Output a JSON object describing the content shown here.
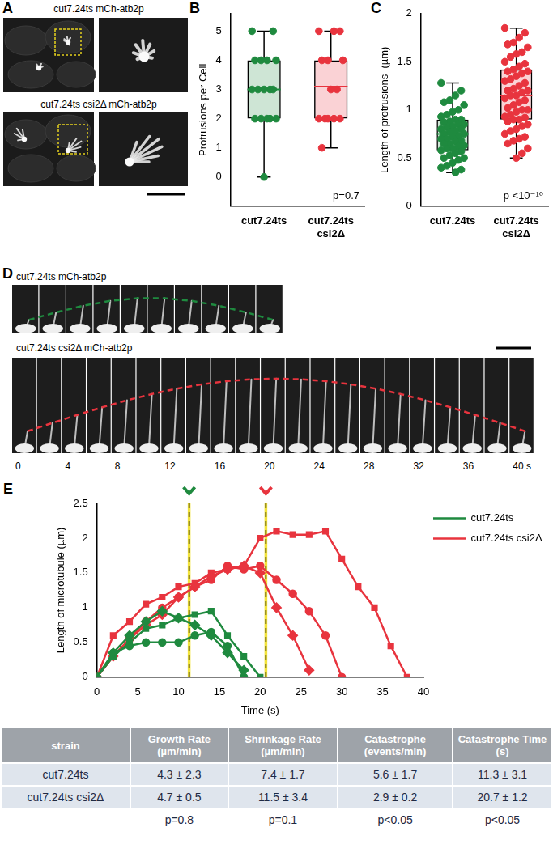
{
  "panel_letters": [
    "A",
    "B",
    "C",
    "D",
    "E"
  ],
  "panel_A": {
    "labels": [
      "cut7.24ts mCh-atb2p",
      "cut7.24ts csi2Δ mCh-atb2p"
    ]
  },
  "panel_D": {
    "labels": [
      "cut7.24ts mCh-atb2p",
      "cut7.24ts csi2Δ mCh-atb2p"
    ],
    "time_labels": [
      "0",
      "4",
      "8",
      "12",
      "16",
      "20",
      "24",
      "28",
      "32",
      "36",
      "40 s"
    ]
  },
  "chart_data": [
    {
      "type": "box",
      "y_label": "Protrusions per Cell",
      "categories": [
        "cut7.24ts",
        "cut7.24ts csi2Δ"
      ],
      "ylim": [
        -1,
        5.6
      ],
      "yticks": [
        0,
        1,
        2,
        3,
        4,
        5
      ],
      "grid": false,
      "annotation": "p=0.7",
      "boxes": [
        {
          "color": "#1f8a3f",
          "min": 0,
          "q1": 2,
          "median": 3,
          "q3": 4,
          "max": 5,
          "points": [
            5,
            5,
            4,
            4,
            4,
            4,
            3,
            3,
            3,
            3,
            3,
            2,
            2,
            2,
            2,
            2,
            0
          ]
        },
        {
          "color": "#e8343e",
          "min": 1,
          "q1": 2,
          "median": 3.1,
          "q3": 4,
          "max": 5,
          "points": [
            5,
            5,
            5,
            4,
            4,
            4,
            3,
            3,
            2,
            2,
            2,
            2,
            2,
            1
          ]
        }
      ]
    },
    {
      "type": "box",
      "y_label": "Length of protrusions  (µm)",
      "categories": [
        "cut7.24ts",
        "cut7.24ts csi2Δ"
      ],
      "ylim": [
        0,
        2
      ],
      "yticks": [
        0,
        0.5,
        1,
        1.5,
        2
      ],
      "grid": false,
      "annotation": "p <10⁻¹⁰",
      "boxes": [
        {
          "color": "#1f8a3f",
          "min": 0.35,
          "q1": 0.58,
          "median": 0.75,
          "q3": 0.9,
          "max": 1.28,
          "points": [
            1.28,
            1.2,
            1.15,
            1.1,
            1.08,
            1.05,
            1.0,
            0.98,
            0.95,
            0.93,
            0.9,
            0.9,
            0.88,
            0.87,
            0.85,
            0.85,
            0.83,
            0.82,
            0.8,
            0.8,
            0.78,
            0.77,
            0.75,
            0.75,
            0.73,
            0.72,
            0.7,
            0.7,
            0.68,
            0.67,
            0.65,
            0.65,
            0.63,
            0.62,
            0.6,
            0.6,
            0.58,
            0.57,
            0.55,
            0.53,
            0.5,
            0.5,
            0.48,
            0.45,
            0.42,
            0.4,
            0.38,
            0.35
          ]
        },
        {
          "color": "#e8343e",
          "min": 0.5,
          "q1": 0.9,
          "median": 1.15,
          "q3": 1.42,
          "max": 1.85,
          "points": [
            1.85,
            1.8,
            1.75,
            1.7,
            1.68,
            1.65,
            1.6,
            1.58,
            1.55,
            1.5,
            1.48,
            1.45,
            1.42,
            1.4,
            1.4,
            1.38,
            1.35,
            1.32,
            1.3,
            1.28,
            1.25,
            1.22,
            1.2,
            1.2,
            1.18,
            1.15,
            1.15,
            1.12,
            1.1,
            1.08,
            1.05,
            1.02,
            1.0,
            1.0,
            0.98,
            0.95,
            0.93,
            0.92,
            0.9,
            0.9,
            0.88,
            0.85,
            0.83,
            0.8,
            0.78,
            0.75,
            0.72,
            0.7,
            0.68,
            0.65,
            0.6,
            0.55,
            0.5
          ]
        }
      ]
    },
    {
      "type": "line",
      "x_label": "Time (s)",
      "y_label": "Length of microtubule (µm)",
      "xlim": [
        0,
        40
      ],
      "xticks": [
        0,
        5,
        10,
        15,
        20,
        25,
        30,
        35,
        40
      ],
      "ylim": [
        0,
        2.5
      ],
      "yticks": [
        0,
        0.5,
        1,
        1.5,
        2,
        2.5
      ],
      "grid": false,
      "legend": "right",
      "vlines": [
        {
          "x": 11.3,
          "color": "#1f8a3f"
        },
        {
          "x": 20.7,
          "color": "#e8343e"
        }
      ],
      "series": [
        {
          "name": "cut7.24ts",
          "color": "#1f8a3f",
          "marker": "square",
          "x": [
            0,
            2,
            4,
            6,
            8,
            10,
            12,
            14,
            16,
            18,
            20
          ],
          "values": [
            0,
            0.3,
            0.5,
            0.7,
            0.75,
            0.85,
            0.9,
            0.95,
            0.6,
            0.3,
            0
          ]
        },
        {
          "name": "cut7.24ts",
          "color": "#1f8a3f",
          "marker": "diamond",
          "x": [
            0,
            2,
            4,
            6,
            8,
            10,
            12,
            14,
            16,
            18
          ],
          "values": [
            0,
            0.35,
            0.6,
            0.8,
            0.95,
            0.85,
            0.75,
            0.6,
            0.35,
            0.1
          ]
        },
        {
          "name": "cut7.24ts",
          "color": "#1f8a3f",
          "marker": "circle",
          "x": [
            0,
            2,
            4,
            6,
            8,
            10,
            12,
            14,
            16,
            18
          ],
          "values": [
            0,
            0.35,
            0.45,
            0.5,
            0.5,
            0.5,
            0.6,
            0.65,
            0.45,
            0
          ]
        },
        {
          "name": "cut7.24ts csi2Δ",
          "color": "#e8343e",
          "marker": "square",
          "x": [
            0,
            2,
            4,
            6,
            8,
            10,
            12,
            14,
            16,
            18,
            20,
            22,
            24,
            26,
            28,
            30,
            32,
            34,
            36,
            38
          ],
          "values": [
            0,
            0.6,
            0.8,
            1.05,
            1.15,
            1.3,
            1.35,
            1.5,
            1.55,
            1.6,
            2.0,
            2.1,
            2.05,
            2.05,
            2.1,
            1.7,
            1.3,
            1.0,
            0.45,
            0
          ]
        },
        {
          "name": "cut7.24ts csi2Δ",
          "color": "#e8343e",
          "marker": "diamond",
          "x": [
            0,
            2,
            4,
            6,
            8,
            10,
            12,
            14,
            16,
            18,
            20,
            22,
            24,
            26
          ],
          "values": [
            0,
            0.3,
            0.55,
            0.75,
            0.9,
            1.15,
            1.3,
            1.45,
            1.55,
            1.6,
            1.5,
            1.0,
            0.6,
            0.1
          ]
        },
        {
          "name": "cut7.24ts csi2Δ",
          "color": "#e8343e",
          "marker": "circle",
          "x": [
            0,
            2,
            4,
            6,
            8,
            10,
            12,
            14,
            16,
            18,
            20,
            22,
            24,
            26,
            28,
            30
          ],
          "values": [
            0,
            0.3,
            0.55,
            0.8,
            1.0,
            1.15,
            1.3,
            1.4,
            1.6,
            1.55,
            1.6,
            1.4,
            1.2,
            0.95,
            0.6,
            0
          ]
        }
      ]
    }
  ],
  "table": {
    "header": [
      "strain",
      "Growth Rate (µm/min)",
      "Shrinkage Rate (µm/min)",
      "Catastrophe (events/min)",
      "Catastrophe Time (s)"
    ],
    "rows": [
      [
        "cut7.24ts",
        "4.3 ± 2.3",
        "7.4 ± 1.7",
        "5.6 ± 1.7",
        "11.3 ± 3.1"
      ],
      [
        "cut7.24ts csi2Δ",
        "4.7 ± 0.5",
        "11.5 ± 3.4",
        "2.9 ± 0.2",
        "20.7 ± 1.2"
      ]
    ],
    "p_values": [
      "p=0.8",
      "p=0.1",
      "p<0.05",
      "p<0.05"
    ]
  }
}
